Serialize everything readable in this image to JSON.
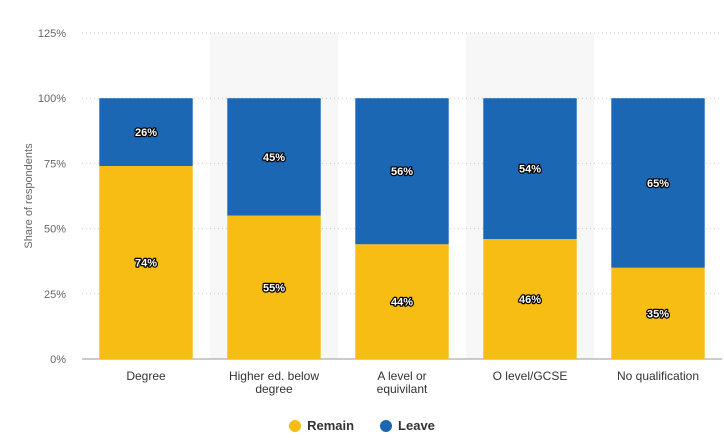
{
  "chart_data": {
    "type": "bar",
    "stacked": true,
    "categories": [
      "Degree",
      "Higher ed. below degree",
      "A level or equivilant",
      "O level/GCSE",
      "No qualification"
    ],
    "series": [
      {
        "name": "Remain",
        "color": "#f7bd12",
        "values": [
          74,
          55,
          44,
          46,
          35
        ]
      },
      {
        "name": "Leave",
        "color": "#1c67b3",
        "values": [
          26,
          45,
          56,
          54,
          65
        ]
      }
    ],
    "ylabel": "Share of respondents",
    "ylim": [
      0,
      125
    ],
    "yticks": [
      0,
      25,
      50,
      75,
      100,
      125
    ],
    "tick_suffix": "%",
    "grid": true,
    "legend": "bottom-center"
  }
}
